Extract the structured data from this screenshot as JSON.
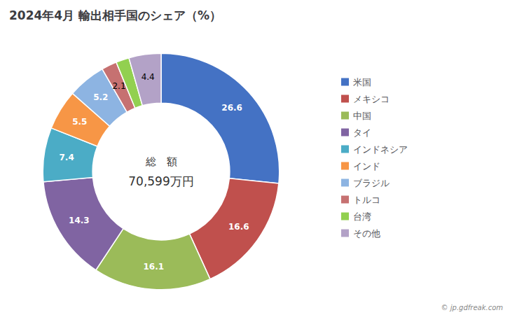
{
  "chart_data": {
    "type": "pie",
    "title": "2024年4月 輸出相手国のシェア（%）",
    "categories": [
      "米国",
      "メキシコ",
      "中国",
      "タイ",
      "インドネシア",
      "インド",
      "ブラジル",
      "トルコ",
      "台湾",
      "その他"
    ],
    "values": [
      26.6,
      16.6,
      16.1,
      14.3,
      7.4,
      5.5,
      5.2,
      2.1,
      1.8,
      4.4
    ],
    "colors": [
      "#4472C4",
      "#C0504D",
      "#9BBB59",
      "#8064A2",
      "#4BACC6",
      "#F79646",
      "#8DB4E2",
      "#C67171",
      "#92D050",
      "#B3A2C7"
    ],
    "data_labels": true,
    "legend": "right",
    "annotations": [
      "総　額",
      "70,599万円",
      "© jp.gdfreak.com"
    ]
  }
}
